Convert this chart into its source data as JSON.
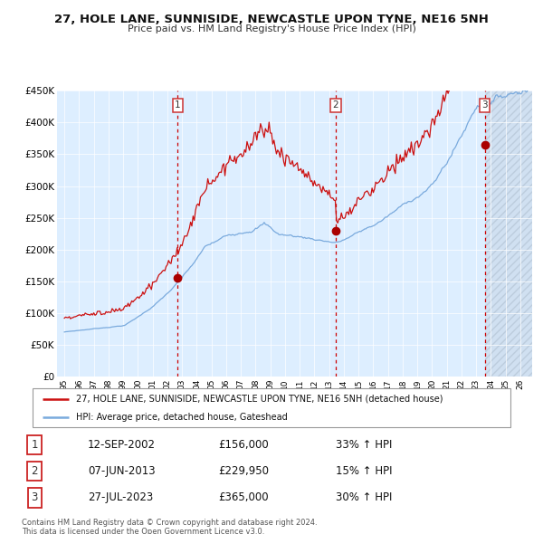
{
  "title": "27, HOLE LANE, SUNNISIDE, NEWCASTLE UPON TYNE, NE16 5NH",
  "subtitle": "Price paid vs. HM Land Registry's House Price Index (HPI)",
  "hpi_legend": "HPI: Average price, detached house, Gateshead",
  "price_legend": "27, HOLE LANE, SUNNISIDE, NEWCASTLE UPON TYNE, NE16 5NH (detached house)",
  "footer1": "Contains HM Land Registry data © Crown copyright and database right 2024.",
  "footer2": "This data is licensed under the Open Government Licence v3.0.",
  "sale_dates_str": [
    "12-SEP-2002",
    "07-JUN-2013",
    "27-JUL-2023"
  ],
  "sale_prices": [
    156000,
    229950,
    365000
  ],
  "sale_hpi_pct": [
    "33% ↑ HPI",
    "15% ↑ HPI",
    "30% ↑ HPI"
  ],
  "sale_date_nums": [
    2002.71,
    2013.44,
    2023.57
  ],
  "vline_color": "#cc0000",
  "dot_color": "#aa0000",
  "hpi_color": "#7aaadd",
  "price_color": "#cc1111",
  "bg_chart": "#ddeeff",
  "ylim": [
    0,
    450000
  ],
  "yticks": [
    0,
    50000,
    100000,
    150000,
    200000,
    250000,
    300000,
    350000,
    400000,
    450000
  ],
  "xlim_start": 1994.5,
  "xlim_end": 2026.8
}
